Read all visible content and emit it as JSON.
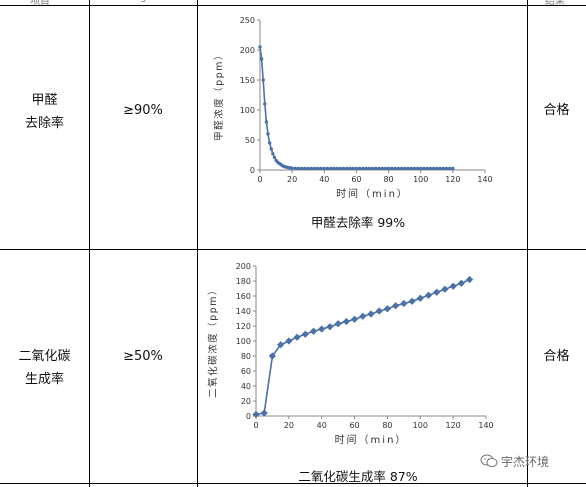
{
  "header_fragments": {
    "left": "项目",
    "middle": "g",
    "right": "结果"
  },
  "rows": [
    {
      "item_label": [
        "甲醛",
        "去除率"
      ],
      "requirement": "≥90%",
      "result": "合格",
      "caption": "甲醛去除率 99%"
    },
    {
      "item_label": [
        "二氧化碳",
        "生成率"
      ],
      "requirement": "≥50%",
      "result": "合格",
      "caption": "二氧化碳生成率 87%"
    }
  ],
  "watermark": {
    "text": "宇杰环境",
    "icon": "wechat-icon"
  },
  "chart_data": [
    {
      "type": "line",
      "color": "#4a72a8",
      "xlabel": "时间（min）",
      "ylabel": "甲醛浓度（ppm）",
      "xlim": [
        0,
        140
      ],
      "ylim": [
        0,
        250
      ],
      "xticks": [
        0,
        20,
        40,
        60,
        80,
        100,
        120,
        140
      ],
      "yticks": [
        0,
        50,
        100,
        150,
        200,
        250
      ],
      "x": [
        0,
        1,
        2,
        3,
        4,
        5,
        6,
        7,
        8,
        9,
        10,
        11,
        12,
        13,
        14,
        15,
        16,
        17,
        18,
        19,
        20,
        22,
        24,
        26,
        28,
        30,
        32,
        34,
        36,
        38,
        40,
        42,
        44,
        46,
        48,
        50,
        52,
        54,
        56,
        58,
        60,
        62,
        64,
        66,
        68,
        70,
        72,
        74,
        76,
        78,
        80,
        82,
        84,
        86,
        88,
        90,
        92,
        94,
        96,
        98,
        100,
        102,
        104,
        106,
        108,
        110,
        112,
        114,
        116,
        118,
        120
      ],
      "y": [
        205,
        185,
        150,
        110,
        80,
        60,
        45,
        35,
        27,
        21,
        16,
        13,
        11,
        9,
        7,
        6,
        5,
        4.5,
        4,
        3.5,
        3,
        2.8,
        2.6,
        2.5,
        2.5,
        2.5,
        2.5,
        2.5,
        2.5,
        2.5,
        2.5,
        2.5,
        2.5,
        2.5,
        2.5,
        2.5,
        2.5,
        2.5,
        2.5,
        2.5,
        2.5,
        2.5,
        2.5,
        2.5,
        2.5,
        2.5,
        2.5,
        2.5,
        2.5,
        2.5,
        2.5,
        2.5,
        2.5,
        2.5,
        2.5,
        2.5,
        2.5,
        2.5,
        2.5,
        2.5,
        2.5,
        2.5,
        2.5,
        2.5,
        2.5,
        2.5,
        2.5,
        2.5,
        2.5,
        2.5,
        2.5
      ]
    },
    {
      "type": "line",
      "color": "#4a72a8",
      "xlabel": "时间（min）",
      "ylabel": "二氧化碳浓度（ppm）",
      "xlim": [
        0,
        140
      ],
      "ylim": [
        0,
        200
      ],
      "xticks": [
        0,
        20,
        40,
        60,
        80,
        100,
        120,
        140
      ],
      "yticks": [
        0,
        20,
        40,
        60,
        80,
        100,
        120,
        140,
        160,
        180,
        200
      ],
      "x": [
        0,
        5,
        10,
        15,
        20,
        25,
        30,
        35,
        40,
        45,
        50,
        55,
        60,
        65,
        70,
        75,
        80,
        85,
        90,
        95,
        100,
        105,
        110,
        115,
        120,
        125,
        130
      ],
      "y": [
        2,
        4,
        80,
        95,
        100,
        105,
        109,
        113,
        116,
        119,
        123,
        126,
        129,
        133,
        136,
        140,
        143,
        147,
        150,
        153,
        157,
        161,
        165,
        169,
        173,
        177,
        182
      ]
    }
  ]
}
